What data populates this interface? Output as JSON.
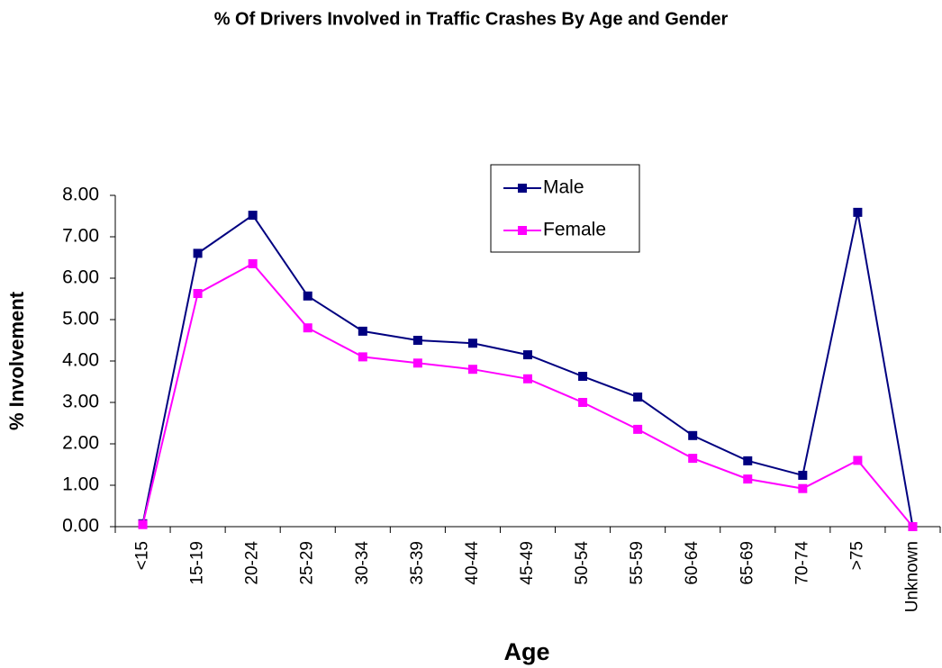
{
  "chart_data": {
    "type": "line",
    "title": "% Of Drivers Involved in Traffic Crashes By Age and Gender",
    "x_label": "Age",
    "y_label": "% Involvement",
    "categories": [
      "<15",
      "15-19",
      "20-24",
      "25-29",
      "30-34",
      "35-39",
      "40-44",
      "45-49",
      "50-54",
      "55-59",
      "60-64",
      "65-69",
      "70-74",
      ">75",
      "Unknown"
    ],
    "series": [
      {
        "name": "Male",
        "color": "#000080",
        "values": [
          0.07,
          6.6,
          7.52,
          5.57,
          4.72,
          4.5,
          4.43,
          4.15,
          3.63,
          3.13,
          2.2,
          1.59,
          1.24,
          7.59,
          0
        ]
      },
      {
        "name": "Female",
        "color": "#ff00ff",
        "values": [
          0.05,
          5.63,
          6.35,
          4.8,
          4.1,
          3.95,
          3.8,
          3.57,
          3.0,
          2.35,
          1.65,
          1.15,
          0.92,
          1.6,
          0
        ]
      }
    ],
    "ylim": [
      0,
      8
    ],
    "yticks": [
      {
        "value": 0,
        "label": "0.00"
      },
      {
        "value": 1,
        "label": "1.00"
      },
      {
        "value": 2,
        "label": "2.00"
      },
      {
        "value": 3,
        "label": "3.00"
      },
      {
        "value": 4,
        "label": "4.00"
      },
      {
        "value": 5,
        "label": "5.00"
      },
      {
        "value": 6,
        "label": "6.00"
      },
      {
        "value": 7,
        "label": "7.00"
      },
      {
        "value": 8,
        "label": "8.00"
      }
    ],
    "grid": false,
    "legend": "top-center"
  }
}
